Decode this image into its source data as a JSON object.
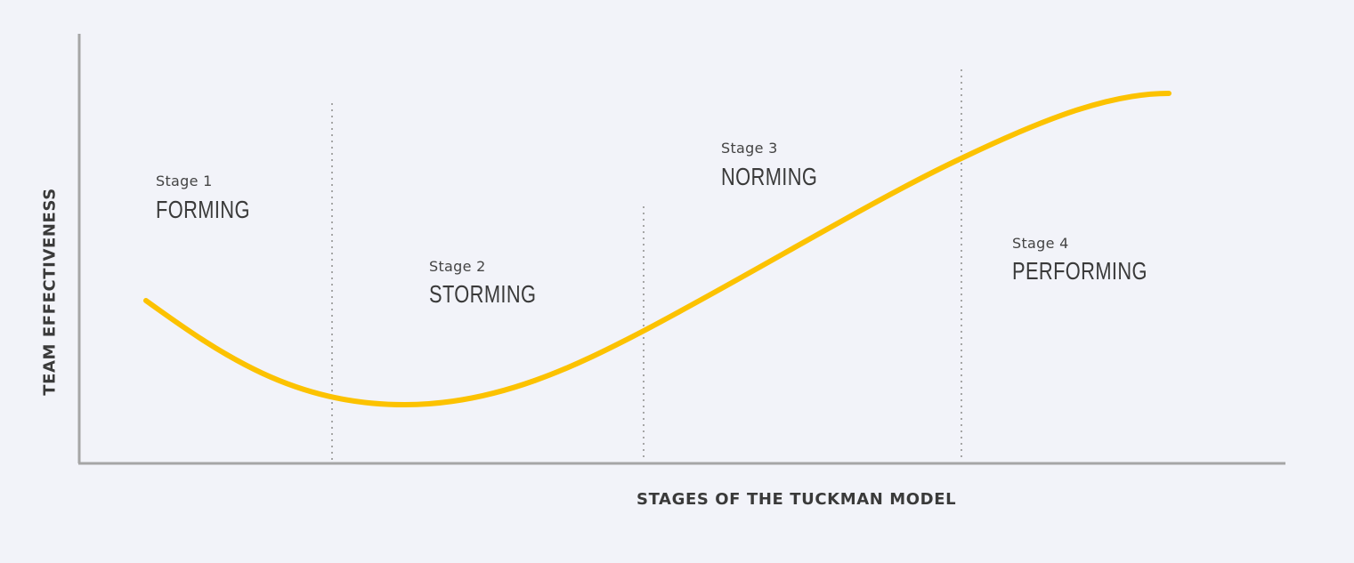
{
  "axes": {
    "x_label": "STAGES OF THE TUCKMAN MODEL",
    "y_label": "TEAM EFFECTIVENESS"
  },
  "stages": [
    {
      "number_label": "Stage 1",
      "name": "FORMING"
    },
    {
      "number_label": "Stage 2",
      "name": "STORMING"
    },
    {
      "number_label": "Stage 3",
      "name": "NORMING"
    },
    {
      "number_label": "Stage 4",
      "name": "PERFORMING"
    }
  ],
  "colors": {
    "curve": "#fcc200",
    "axis": "#a6a6a6",
    "divider": "#a6a6a6",
    "background": "#f2f3f9"
  }
}
